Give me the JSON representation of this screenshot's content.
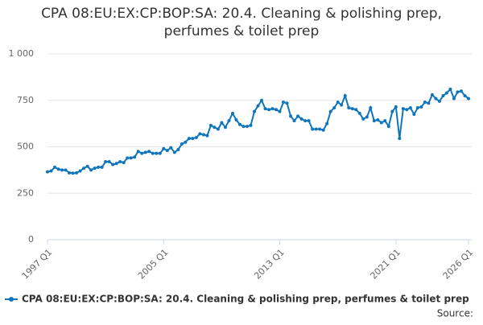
{
  "chart_data": {
    "type": "line",
    "title": "CPA 08:EU:EX:CP:BOP:SA: 20.4. Cleaning & polishing prep, perfumes & toilet prep",
    "source": "Source:",
    "categories": [
      "1997 Q1",
      null,
      null,
      null,
      null,
      null,
      null,
      null,
      null,
      null,
      null,
      null,
      null,
      null,
      null,
      null,
      null,
      null,
      null,
      null,
      null,
      null,
      null,
      null,
      null,
      null,
      null,
      null,
      null,
      null,
      null,
      null,
      "2005 Q1",
      null,
      null,
      null,
      null,
      null,
      null,
      null,
      null,
      null,
      null,
      null,
      null,
      null,
      null,
      null,
      null,
      null,
      null,
      null,
      null,
      null,
      null,
      null,
      null,
      null,
      null,
      null,
      null,
      null,
      null,
      null,
      "2013 Q1",
      null,
      null,
      null,
      null,
      null,
      null,
      null,
      null,
      null,
      null,
      null,
      null,
      null,
      null,
      null,
      null,
      null,
      null,
      null,
      null,
      null,
      null,
      null,
      null,
      null,
      null,
      null,
      null,
      null,
      null,
      null,
      "2021 Q1",
      null,
      null,
      null,
      null,
      null,
      null,
      null,
      null,
      null,
      null,
      null,
      null,
      null,
      null,
      null,
      null,
      null,
      null,
      null,
      "2026 Q1"
    ],
    "series": [
      {
        "name": "CPA 08:EU:EX:CP:BOP:SA: 20.4. Cleaning & polishing prep, perfumes & toilet prep",
        "color": "#0f75bc",
        "values": [
          365,
          370,
          390,
          380,
          375,
          375,
          360,
          358,
          360,
          370,
          385,
          395,
          375,
          385,
          390,
          390,
          420,
          420,
          405,
          410,
          420,
          415,
          440,
          440,
          445,
          475,
          465,
          470,
          475,
          465,
          465,
          465,
          490,
          480,
          495,
          470,
          485,
          515,
          525,
          545,
          545,
          550,
          570,
          565,
          560,
          615,
          605,
          595,
          630,
          605,
          640,
          680,
          645,
          620,
          610,
          610,
          615,
          690,
          720,
          750,
          705,
          700,
          705,
          700,
          690,
          740,
          735,
          665,
          640,
          665,
          650,
          640,
          640,
          595,
          595,
          595,
          590,
          625,
          690,
          710,
          740,
          725,
          775,
          710,
          705,
          700,
          680,
          650,
          660,
          710,
          640,
          645,
          630,
          640,
          610,
          690,
          715,
          545,
          705,
          700,
          710,
          675,
          710,
          715,
          740,
          735,
          780,
          760,
          745,
          775,
          790,
          810,
          760,
          795,
          800,
          775,
          760
        ]
      }
    ],
    "ylim": [
      0,
      1000
    ],
    "yticks": [
      0,
      250,
      500,
      750,
      {
        "value": 1000,
        "label": "1 000"
      }
    ],
    "grid": true
  }
}
